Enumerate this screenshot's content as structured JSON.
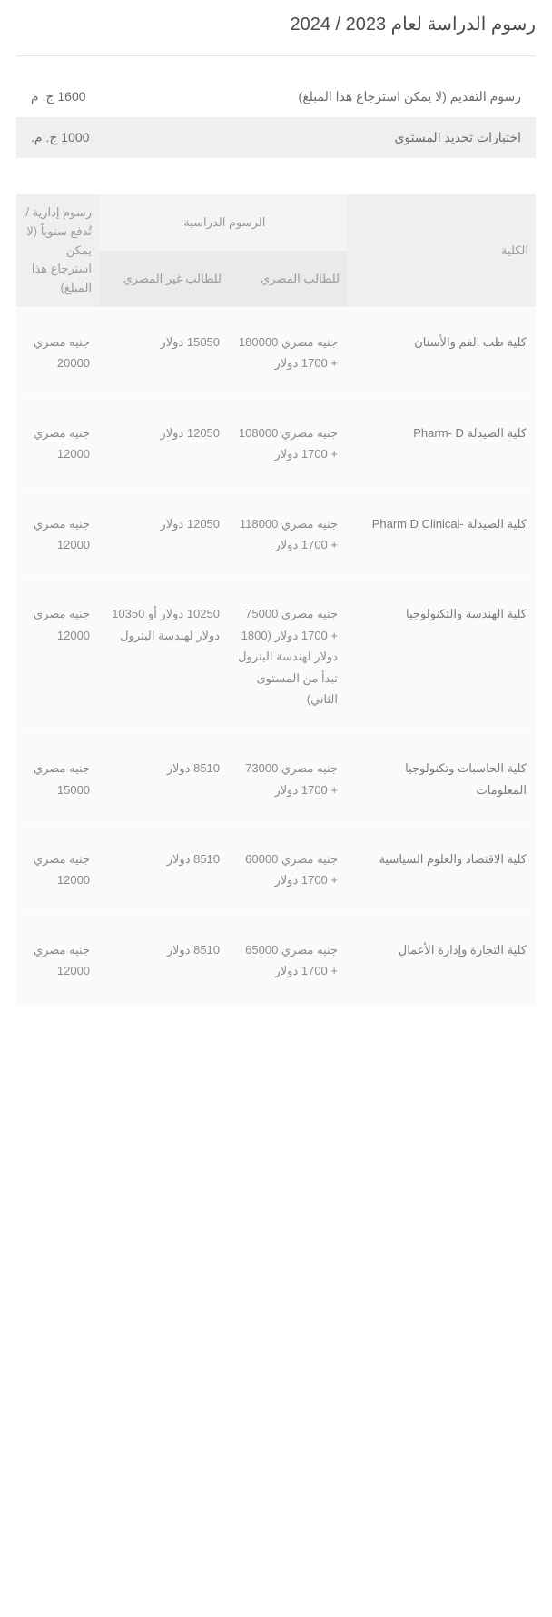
{
  "title": "رسوم الدراسة لعام 2023 / 2024",
  "simple_fees": {
    "rows": [
      {
        "label": "رسوم التقديم (لا يمكن استرجاع هذا المبلغ)",
        "value": "1600 ج. م"
      },
      {
        "label": "اختبارات تحديد المستوى",
        "value": "1000 ج. م."
      }
    ]
  },
  "tuition_table": {
    "headers": {
      "faculty": "الكلية",
      "tuition_merged": "الرسوم الدراسية:",
      "egyptian": "للطالب المصري",
      "non_egyptian": "للطالب غير المصري",
      "admin": "رسوم إدارية / تُدفع سنوياً (لا يمكن استرجاع هذا المبلغ)"
    },
    "rows": [
      {
        "faculty": "كلية طب الفم والأسنان",
        "egyptian": "جنيه مصري 180000 + 1700 دولار",
        "non_egyptian": "15050 دولار",
        "admin": "جنيه مصري 20000"
      },
      {
        "faculty": "كلية الصيدلة Pharm- D",
        "egyptian": "جنيه مصري 108000 + 1700 دولار",
        "non_egyptian": "12050 دولار",
        "admin": "جنيه مصري 12000"
      },
      {
        "faculty": "كلية الصيدلة -Pharm D Clinical",
        "egyptian": "جنيه مصري 118000 + 1700 دولار",
        "non_egyptian": "12050 دولار",
        "admin": "جنيه مصري 12000"
      },
      {
        "faculty": "كلية الهندسة والتكنولوجيا",
        "egyptian": "جنيه مصري 75000 + 1700 دولار (1800 دولار لهندسة البترول تبدأ من المستوى الثاني)",
        "non_egyptian": "10250 دولار أو 10350 دولار لهندسة البترول",
        "admin": "جنيه مصري 12000"
      },
      {
        "faculty": "كلية الحاسبات وتكنولوجيا المعلومات",
        "egyptian": "جنيه مصري 73000 + 1700 دولار",
        "non_egyptian": "8510 دولار",
        "admin": "جنيه مصري 15000"
      },
      {
        "faculty": "كلية الاقتصاد والعلوم السياسية",
        "egyptian": "جنيه مصري 60000 + 1700 دولار",
        "non_egyptian": "8510 دولار",
        "admin": "جنيه مصري 12000"
      },
      {
        "faculty": "كلية التجارة وإدارة الأعمال",
        "egyptian": "جنيه مصري 65000 + 1700 دولار",
        "non_egyptian": "8510 دولار",
        "admin": "جنيه مصري 12000"
      }
    ]
  },
  "styling": {
    "page_bg": "#ffffff",
    "title_color": "#4a4a4a",
    "text_color": "#6b6b6b",
    "muted_color": "#9a9a9a",
    "header_bg": "#efefef",
    "subheader_bg": "#eaeaea",
    "body_bg": "#fafafa",
    "divider": "#e2e2e2",
    "font_family": "Tahoma",
    "title_fontsize": 20,
    "body_fontsize": 13
  }
}
